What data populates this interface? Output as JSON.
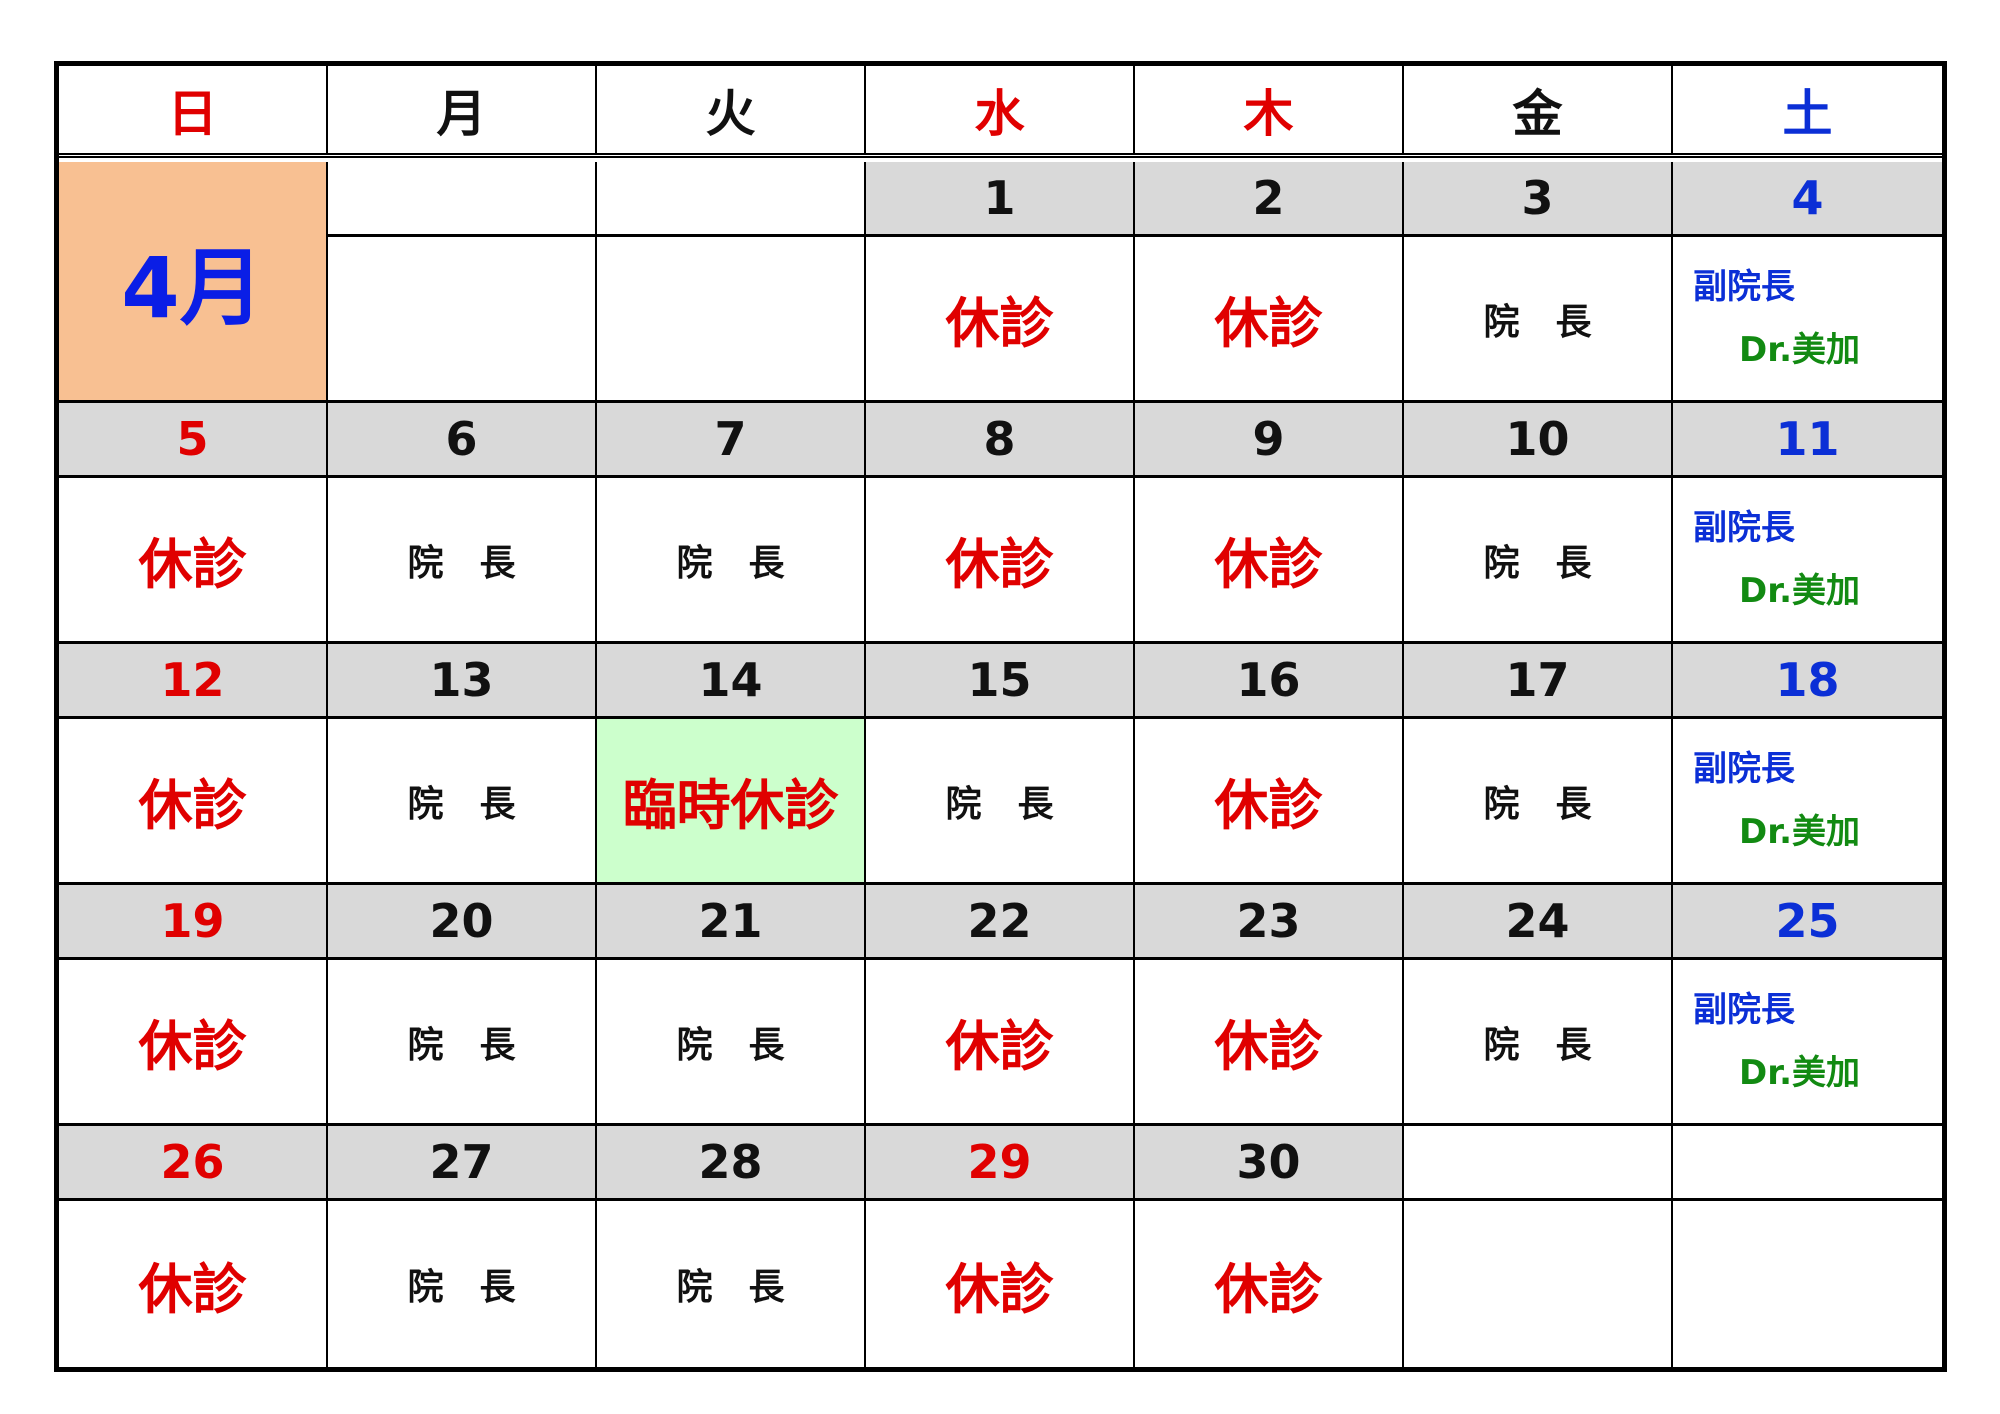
{
  "month_label": "4月",
  "colors": {
    "sunday": "#e00000",
    "weekday": "#111111",
    "saturday": "#0b2fd6",
    "holiday_bg": "#d9d9d9",
    "month_bg": "#f8c092",
    "special_bg": "#ccffcc",
    "doctor_green": "#128a12"
  },
  "weekdays": [
    {
      "label": "日",
      "color": "#e00000"
    },
    {
      "label": "月",
      "color": "#111111"
    },
    {
      "label": "火",
      "color": "#111111"
    },
    {
      "label": "水",
      "color": "#e00000"
    },
    {
      "label": "木",
      "color": "#e00000"
    },
    {
      "label": "金",
      "color": "#111111"
    },
    {
      "label": "土",
      "color": "#0b2fd6"
    }
  ],
  "labels": {
    "closed": "休診",
    "director": "院　長",
    "vice_director": "副院長",
    "doctor": "Dr.美加",
    "temp_closed": "臨時休診"
  },
  "weeks": [
    [
      {
        "month": true
      },
      {
        "date": "",
        "type": ""
      },
      {
        "date": "",
        "type": ""
      },
      {
        "date": "1",
        "color": "#111111",
        "type": "closed"
      },
      {
        "date": "2",
        "color": "#111111",
        "type": "closed"
      },
      {
        "date": "3",
        "color": "#111111",
        "type": "director"
      },
      {
        "date": "4",
        "color": "#0b2fd6",
        "type": "saturday"
      }
    ],
    [
      {
        "date": "5",
        "color": "#e00000",
        "type": "closed"
      },
      {
        "date": "6",
        "color": "#111111",
        "type": "director"
      },
      {
        "date": "7",
        "color": "#111111",
        "type": "director"
      },
      {
        "date": "8",
        "color": "#111111",
        "type": "closed"
      },
      {
        "date": "9",
        "color": "#111111",
        "type": "closed"
      },
      {
        "date": "10",
        "color": "#111111",
        "type": "director"
      },
      {
        "date": "11",
        "color": "#0b2fd6",
        "type": "saturday"
      }
    ],
    [
      {
        "date": "12",
        "color": "#e00000",
        "type": "closed"
      },
      {
        "date": "13",
        "color": "#111111",
        "type": "director"
      },
      {
        "date": "14",
        "color": "#111111",
        "type": "temp_closed"
      },
      {
        "date": "15",
        "color": "#111111",
        "type": "director"
      },
      {
        "date": "16",
        "color": "#111111",
        "type": "closed"
      },
      {
        "date": "17",
        "color": "#111111",
        "type": "director"
      },
      {
        "date": "18",
        "color": "#0b2fd6",
        "type": "saturday"
      }
    ],
    [
      {
        "date": "19",
        "color": "#e00000",
        "type": "closed"
      },
      {
        "date": "20",
        "color": "#111111",
        "type": "director"
      },
      {
        "date": "21",
        "color": "#111111",
        "type": "director"
      },
      {
        "date": "22",
        "color": "#111111",
        "type": "closed"
      },
      {
        "date": "23",
        "color": "#111111",
        "type": "closed"
      },
      {
        "date": "24",
        "color": "#111111",
        "type": "director"
      },
      {
        "date": "25",
        "color": "#0b2fd6",
        "type": "saturday"
      }
    ],
    [
      {
        "date": "26",
        "color": "#e00000",
        "type": "closed"
      },
      {
        "date": "27",
        "color": "#111111",
        "type": "director"
      },
      {
        "date": "28",
        "color": "#111111",
        "type": "director"
      },
      {
        "date": "29",
        "color": "#e00000",
        "type": "closed"
      },
      {
        "date": "30",
        "color": "#111111",
        "type": "closed"
      },
      {
        "date": "",
        "type": ""
      },
      {
        "date": "",
        "type": ""
      }
    ]
  ]
}
